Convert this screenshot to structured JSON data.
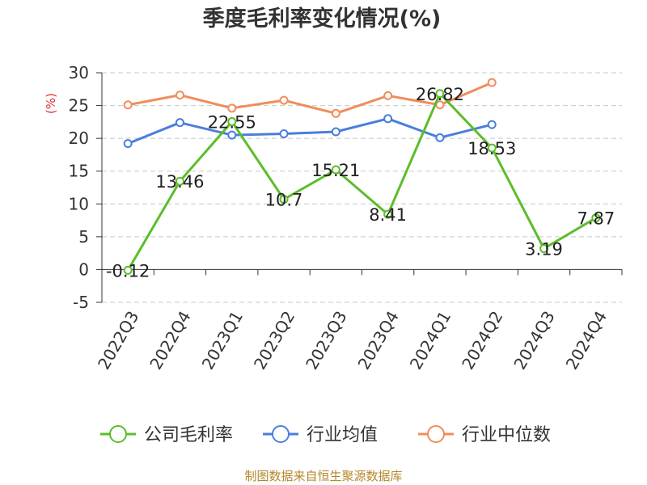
{
  "chart_data": {
    "type": "line",
    "title": "季度毛利率变化情况(%)",
    "ylabel": "(%)",
    "xlabel": "",
    "categories": [
      "2022Q3",
      "2022Q4",
      "2023Q1",
      "2023Q2",
      "2023Q3",
      "2023Q4",
      "2024Q1",
      "2024Q2",
      "2024Q3",
      "2024Q4"
    ],
    "ylim": [
      -5,
      30
    ],
    "yticks": [
      30,
      25,
      20,
      15,
      10,
      5,
      0,
      -5
    ],
    "grid": true,
    "legend_position": "bottom",
    "series": [
      {
        "name": "公司毛利率",
        "color": "#5cbd2a",
        "values": [
          -0.12,
          13.46,
          22.55,
          10.7,
          15.21,
          8.41,
          26.82,
          18.53,
          3.19,
          7.87
        ],
        "labels": [
          "-0.12",
          "13.46",
          "22.55",
          "10.7",
          "15.21",
          "8.41",
          "26.82",
          "18.53",
          "3.19",
          "7.87"
        ]
      },
      {
        "name": "行业均值",
        "color": "#4a7ede",
        "values": [
          19.2,
          22.4,
          20.5,
          20.7,
          21.0,
          23.0,
          20.1,
          22.1,
          null,
          null
        ]
      },
      {
        "name": "行业中位数",
        "color": "#f28c5c",
        "values": [
          25.1,
          26.6,
          24.6,
          25.8,
          23.8,
          26.5,
          25.1,
          28.5,
          null,
          null
        ]
      }
    ]
  },
  "source": "制图数据来自恒生聚源数据库"
}
